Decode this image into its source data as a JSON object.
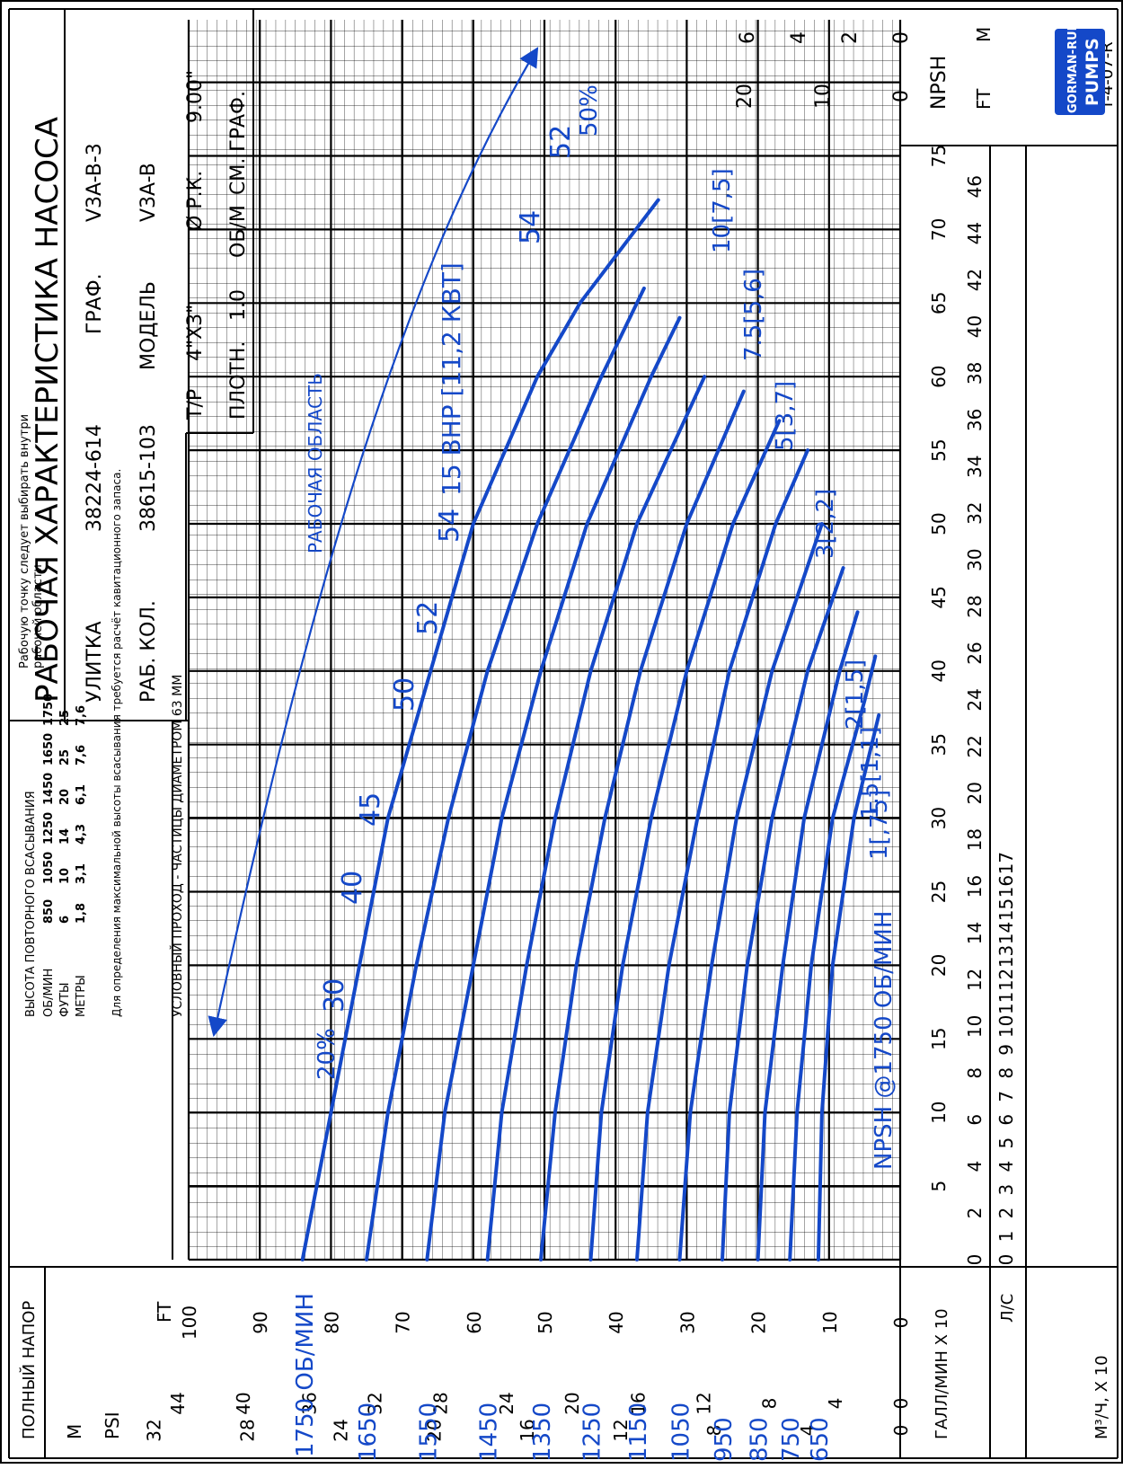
{
  "title": "РАБОЧАЯ ХАРАКТЕРИСТИКА НАСОСА",
  "info": {
    "volute_label": "УЛИТКА",
    "volute_value": "38224-614",
    "graph_label": "ГРАФ.",
    "graph_value": "V3A-B-3",
    "impeller_label": "РАБ. КОЛ.",
    "impeller_value": "38615-103",
    "model_label": "МОДЕЛЬ",
    "model_value": "V3A-B",
    "size_label": "Т/Р",
    "size_value": "4\"X3\"",
    "diameter_label": "Ø Р.К.",
    "diameter_value": "9.00\"",
    "density_label": "ПЛОТН.",
    "density_value": "1.0",
    "speed_label": "ОБ/М",
    "speed_value": "СМ. ГРАФ."
  },
  "note_box": "Рабочую точку следует выбирать внутри рабочей области",
  "passage_note": "УСЛОВНЫЙ ПРОХОД - ЧАСТИЦЫ ДИАМЕТРОМ 63 ММ",
  "priming_table": {
    "title": "ВЫСОТА ПОВТОРНОГО ВСАСЫВАНИЯ",
    "rows": [
      [
        "ОБ/МИН",
        "850",
        "1050",
        "1250",
        "1450",
        "1650",
        "1750"
      ],
      [
        "ФУТЫ",
        "6",
        "10",
        "14",
        "20",
        "25",
        "25"
      ],
      [
        "МЕТРЫ",
        "1,8",
        "3,1",
        "4,3",
        "6,1",
        "7,6",
        "7,6"
      ]
    ],
    "note": "Для определения максимальной высоты всасывания требуется расчёт кавитационного запаса."
  },
  "head_axis": {
    "title": "ПОЛНЫЙ НАПОР",
    "m_label": "M",
    "psi_label": "PSI",
    "ft_label": "FT",
    "m_ticks": [
      "0",
      "4",
      "8",
      "12",
      "16",
      "20",
      "24",
      "28",
      "32"
    ],
    "psi_ticks": [
      "0",
      "4",
      "8",
      "12",
      "16",
      "20",
      "24",
      "28",
      "32",
      "36",
      "40",
      "44"
    ],
    "ft_ticks": [
      "0",
      "10",
      "20",
      "30",
      "40",
      "50",
      "60",
      "70",
      "80",
      "90",
      "100"
    ]
  },
  "flow_axis": {
    "gpm_label": "ГАЛЛ/МИН X 10",
    "lps_label": "Л/С",
    "m3h_label": "M³/Ч, X 10",
    "gpm_ticks": [
      "5",
      "10",
      "15",
      "20",
      "25",
      "30",
      "35",
      "40",
      "45",
      "50",
      "55",
      "60",
      "65",
      "70",
      "75"
    ],
    "lps_ticks": [
      "0",
      "1",
      "2",
      "3",
      "4",
      "5",
      "6",
      "7",
      "8",
      "9",
      "10",
      "11",
      "12",
      "13",
      "14",
      "15",
      "16",
      "17"
    ],
    "m3h_ticks": [
      "0",
      "2",
      "4",
      "6",
      "8",
      "10",
      "12",
      "14",
      "16",
      "18",
      "20",
      "22",
      "24",
      "26",
      "28",
      "30",
      "32",
      "34",
      "36",
      "38",
      "40",
      "42",
      "44",
      "46"
    ]
  },
  "npsh_axis": {
    "title": "NPSH",
    "ft_label": "FT",
    "m_label": "M",
    "ft_ticks": [
      "0",
      "10",
      "20"
    ],
    "m_ticks": [
      "0",
      "2",
      "4",
      "6"
    ]
  },
  "labels": {
    "work_area": "РАБОЧАЯ ОБЛАСТЬ",
    "npsh_curve": "NPSH @1750 ОБ/МИН",
    "speed_1750": "1750 ОБ/МИН",
    "eff_20": "20%",
    "eff_50": "50%",
    "bhp_15": "15 BHP [11,2 КВТ]",
    "bhp_10": "10[7,5]",
    "bhp_7_5": "7.5[5,6]",
    "bhp_5": "5[3,7]",
    "bhp_3": "3[2,2]",
    "bhp_2": "2[1,5]",
    "bhp_1_5": "1.5[1,1]",
    "bhp_1": "1[,75]",
    "eff_30": "30",
    "eff_40": "40",
    "eff_45": "45",
    "eff_50b": "50",
    "eff_52": "52",
    "eff_54": "54",
    "eff_54b": "54",
    "eff_52b": "52"
  },
  "speeds": [
    "1650",
    "1550",
    "1450",
    "1350",
    "1250",
    "1150",
    "1050",
    "950",
    "850",
    "750",
    "650"
  ],
  "doc_number": "T-4-07-R",
  "logo": {
    "brand": "GORMAN-RUPP",
    "word": "PUMPS"
  },
  "colors": {
    "curve": "#1448c8",
    "grid": "#000000"
  },
  "chart_data": {
    "type": "line",
    "x_unit": "ГАЛЛ/МИН X 10",
    "y_unit": "FT",
    "xlim": [
      0,
      78
    ],
    "ylim": [
      0,
      100
    ],
    "series": [
      {
        "name": "1750",
        "x": [
          0,
          10,
          20,
          30,
          40,
          50,
          60,
          65,
          72
        ],
        "y": [
          84,
          80,
          76,
          72,
          66,
          60,
          51,
          45,
          34
        ]
      },
      {
        "name": "1650",
        "x": [
          0,
          10,
          20,
          30,
          40,
          50,
          60,
          66
        ],
        "y": [
          75,
          72,
          68,
          63.5,
          58,
          51,
          42,
          36
        ]
      },
      {
        "name": "1550",
        "x": [
          0,
          10,
          20,
          30,
          40,
          50,
          60,
          64
        ],
        "y": [
          66.5,
          64,
          60,
          56,
          50.5,
          44,
          35,
          31
        ]
      },
      {
        "name": "1450",
        "x": [
          0,
          10,
          20,
          30,
          40,
          50,
          60
        ],
        "y": [
          58,
          56,
          52.5,
          48.5,
          43.5,
          37,
          27.5
        ]
      },
      {
        "name": "1350",
        "x": [
          0,
          10,
          20,
          30,
          40,
          50,
          59
        ],
        "y": [
          50.5,
          48.5,
          45.5,
          41.5,
          36.5,
          30,
          22
        ]
      },
      {
        "name": "1250",
        "x": [
          0,
          10,
          20,
          30,
          40,
          50,
          57
        ],
        "y": [
          43.5,
          42,
          39,
          35,
          30,
          23.5,
          17
        ]
      },
      {
        "name": "1150",
        "x": [
          0,
          10,
          20,
          30,
          40,
          50,
          55
        ],
        "y": [
          37,
          35.5,
          32.5,
          28.5,
          24,
          17.5,
          13
        ]
      },
      {
        "name": "1050",
        "x": [
          0,
          10,
          20,
          30,
          40,
          50
        ],
        "y": [
          31,
          29.5,
          26.5,
          23,
          18,
          11
        ]
      },
      {
        "name": "950",
        "x": [
          0,
          10,
          20,
          30,
          40,
          47
        ],
        "y": [
          25,
          24,
          21.5,
          18,
          13,
          8
        ]
      },
      {
        "name": "850",
        "x": [
          0,
          10,
          20,
          30,
          40,
          44
        ],
        "y": [
          20,
          19,
          16.5,
          13.5,
          8.5,
          6
        ]
      },
      {
        "name": "750",
        "x": [
          0,
          10,
          20,
          30,
          38,
          41
        ],
        "y": [
          15.5,
          14.5,
          12.5,
          9.5,
          5,
          3.5
        ]
      },
      {
        "name": "650",
        "x": [
          0,
          10,
          20,
          30,
          37
        ],
        "y": [
          11.5,
          11,
          9.5,
          6.5,
          3
        ]
      }
    ]
  }
}
